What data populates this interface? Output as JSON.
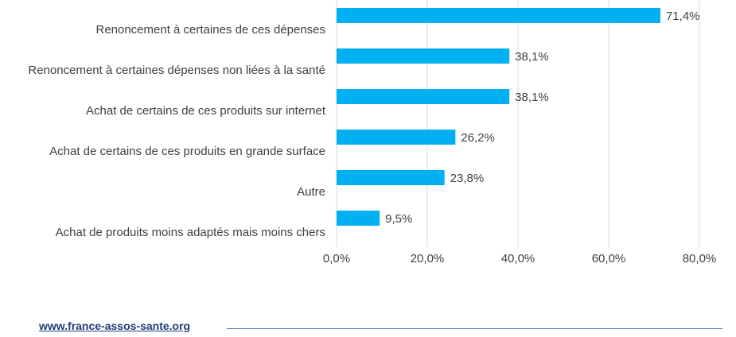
{
  "chart_data": {
    "type": "bar",
    "orientation": "horizontal",
    "categories": [
      "Renoncement à certaines de ces dépenses",
      "Renoncement à certaines dépenses non liées à la santé",
      "Achat de certains de ces produits sur internet",
      "Achat de certains de ces produits en grande surface",
      "Autre",
      "Achat de produits moins adaptés mais moins chers"
    ],
    "values": [
      71.4,
      38.1,
      38.1,
      26.2,
      23.8,
      9.5
    ],
    "value_labels": [
      "71,4%",
      "38,1%",
      "38,1%",
      "26,2%",
      "23,8%",
      "9,5%"
    ],
    "xlim": [
      0,
      80
    ],
    "xticks": [
      0,
      20,
      40,
      60,
      80
    ],
    "xtick_labels": [
      "0,0%",
      "20,0%",
      "40,0%",
      "60,0%",
      "80,0%"
    ],
    "grid": true,
    "bar_color": "#00b0f0",
    "title": "",
    "xlabel": "",
    "ylabel": ""
  },
  "footer": {
    "link_text": "www.france-assos-sante.org"
  },
  "colors": {
    "text": "#404040",
    "grid": "#d9d9d9",
    "link": "#1f3a7a",
    "rule": "#4a7cb8"
  }
}
